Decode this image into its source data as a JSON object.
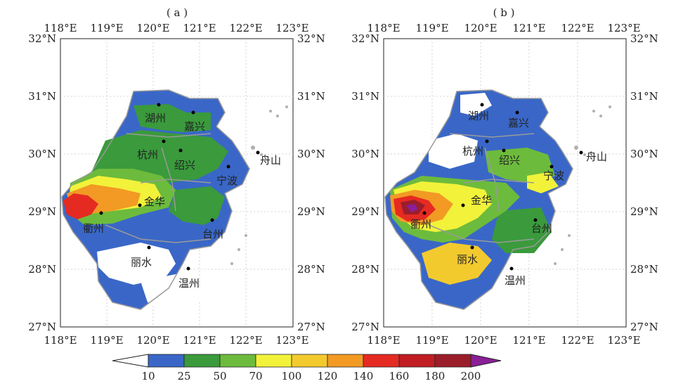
{
  "panels": [
    {
      "label": "( a )",
      "x_ticks": [
        "118°E",
        "119°E",
        "120°E",
        "121°E",
        "122°E",
        "123°E"
      ],
      "y_ticks": [
        "32°N",
        "31°N",
        "30°N",
        "29°N",
        "28°N",
        "27°N"
      ],
      "cities": [
        "湖州",
        "嘉兴",
        "杭州",
        "绍兴",
        "舟山",
        "宁波",
        "金华",
        "衢州",
        "台州",
        "丽水",
        "温州"
      ]
    },
    {
      "label": "( b )",
      "x_ticks": [
        "118°E",
        "119°E",
        "120°E",
        "121°E",
        "122°E",
        "123°E"
      ],
      "y_ticks": [
        "32°N",
        "31°N",
        "30°N",
        "29°N",
        "28°N",
        "27°N"
      ],
      "cities": [
        "湖州",
        "嘉兴",
        "杭州",
        "绍兴",
        "舟山",
        "宁波",
        "金华",
        "衢州",
        "台州",
        "丽水",
        "温州"
      ]
    }
  ],
  "colorbar": {
    "labels": [
      "10",
      "25",
      "50",
      "70",
      "100",
      "120",
      "140",
      "160",
      "180",
      "200"
    ],
    "colors": [
      "#ffffff",
      "#3a67c7",
      "#3a9a3c",
      "#6dbb3c",
      "#f2f23a",
      "#f3ca2e",
      "#f29a24",
      "#e52a22",
      "#c01e22",
      "#9a1e2a",
      "#8a1f97"
    ]
  }
}
